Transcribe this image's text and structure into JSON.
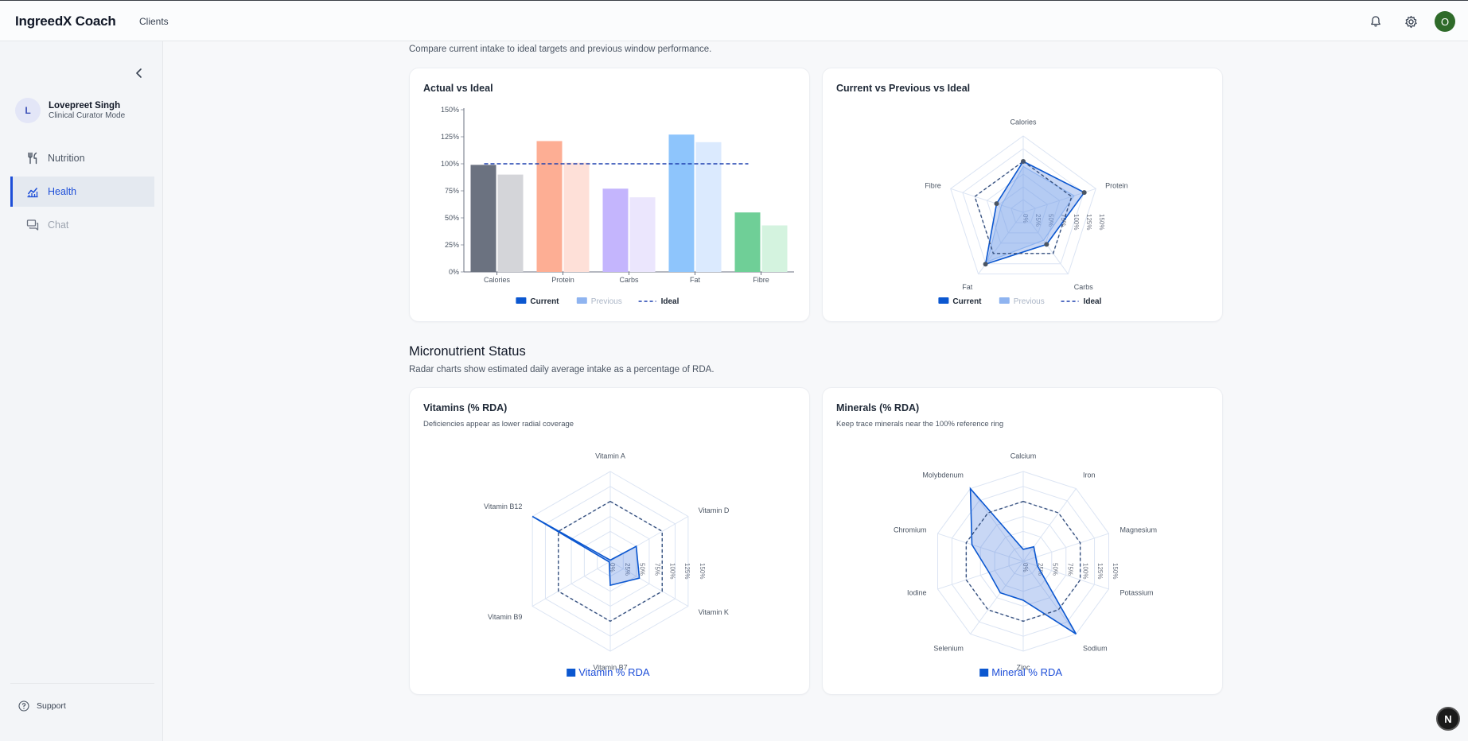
{
  "app": {
    "brand": "IngreedX Coach",
    "nav_link": "Clients",
    "user_initial": "O"
  },
  "topbar_icons": [
    "bell-icon",
    "gear-icon"
  ],
  "sidebar": {
    "user": {
      "initial": "L",
      "name": "Lovepreet Singh",
      "role": "Clinical Curator Mode"
    },
    "items": [
      {
        "label": "Nutrition",
        "icon": "fork-knife-icon",
        "active": false,
        "disabled": false
      },
      {
        "label": "Health",
        "icon": "chart-icon",
        "active": true,
        "disabled": false
      },
      {
        "label": "Chat",
        "icon": "chat-icon",
        "active": false,
        "disabled": true
      }
    ],
    "support": "Support"
  },
  "main": {
    "top_subtitle": "Compare current intake to ideal targets and previous window performance.",
    "micro_title": "Micronutrient Status",
    "micro_subtitle": "Radar charts show estimated daily average intake as a percentage of RDA."
  },
  "cards": {
    "actual_vs_ideal": {
      "title": "Actual vs Ideal"
    },
    "current_prev_ideal": {
      "title": "Current vs Previous vs Ideal"
    },
    "vitamins": {
      "title": "Vitamins (% RDA)",
      "subtitle": "Deficiencies appear as lower radial coverage"
    },
    "minerals": {
      "title": "Minerals (% RDA)",
      "subtitle": "Keep trace minerals near the 100% reference ring"
    }
  },
  "colors": {
    "accent": "#1d4ed8",
    "current": "#0b57d0",
    "previous": "#8fb4f0",
    "ideal": "#1e40af"
  },
  "chart_data": [
    {
      "type": "bar",
      "title": "Actual vs Ideal",
      "categories": [
        "Calories",
        "Protein",
        "Carbs",
        "Fat",
        "Fibre"
      ],
      "yticks": [
        "0%",
        "25%",
        "50%",
        "75%",
        "100%",
        "125%",
        "150%"
      ],
      "ylim": [
        0,
        150
      ],
      "series": [
        {
          "name": "Current",
          "values": [
            99,
            121,
            77,
            127,
            55
          ],
          "colors": [
            "#6b7280",
            "#fdae94",
            "#c4b5fd",
            "#8ec5fc",
            "#6fcf97"
          ]
        },
        {
          "name": "Previous",
          "values": [
            90,
            101,
            69,
            120,
            43
          ],
          "colors": [
            "#d4d5d9",
            "#fee0d8",
            "#ebe6fd",
            "#dbeafe",
            "#d4f3df"
          ]
        }
      ],
      "ideal": 100,
      "legend": [
        {
          "label": "Current",
          "kind": "current"
        },
        {
          "label": "Previous",
          "kind": "previous"
        },
        {
          "label": "Ideal",
          "kind": "ideal"
        }
      ]
    },
    {
      "type": "radar",
      "title": "Current vs Previous vs Ideal",
      "axes": [
        "Calories",
        "Protein",
        "Carbs",
        "Fat",
        "Fibre"
      ],
      "ring_labels": [
        "0%",
        "25%",
        "50%",
        "75%",
        "100%",
        "125%",
        "150%"
      ],
      "max": 150,
      "series": [
        {
          "name": "Current",
          "values": [
            100,
            126,
            78,
            126,
            55
          ]
        },
        {
          "name": "Previous",
          "values": [
            90,
            105,
            68,
            120,
            45
          ]
        },
        {
          "name": "Ideal",
          "values": [
            100,
            100,
            100,
            100,
            100
          ]
        }
      ],
      "legend": [
        {
          "label": "Current",
          "kind": "current"
        },
        {
          "label": "Previous",
          "kind": "previous"
        },
        {
          "label": "Ideal",
          "kind": "ideal"
        }
      ]
    },
    {
      "type": "radar",
      "title": "Vitamins (% RDA)",
      "axes": [
        "Vitamin A",
        "Vitamin D",
        "Vitamin K",
        "Vitamin B7",
        "Vitamin B9",
        "Vitamin B12"
      ],
      "ring_labels": [
        "0%",
        "25%",
        "50%",
        "75%",
        "100%",
        "125%",
        "150%"
      ],
      "max": 150,
      "series": [
        {
          "name": "Vitamin % RDA",
          "values": [
            2,
            50,
            56,
            40,
            2,
            150
          ]
        },
        {
          "name": "Ideal",
          "values": [
            100,
            100,
            100,
            100,
            100,
            100
          ]
        }
      ],
      "legend": [
        {
          "label": "Vitamin % RDA",
          "kind": "big"
        }
      ]
    },
    {
      "type": "radar",
      "title": "Minerals (% RDA)",
      "axes": [
        "Calcium",
        "Iron",
        "Magnesium",
        "Potassium",
        "Sodium",
        "Zinc",
        "Selenium",
        "Iodine",
        "Chromium",
        "Molybdenum"
      ],
      "ring_labels": [
        "0%",
        "25%",
        "50%",
        "75%",
        "100%",
        "125%",
        "150%"
      ],
      "max": 150,
      "series": [
        {
          "name": "Mineral % RDA",
          "values": [
            20,
            30,
            22,
            25,
            150,
            65,
            65,
            60,
            90,
            150
          ]
        },
        {
          "name": "Ideal",
          "values": [
            100,
            100,
            100,
            100,
            100,
            100,
            100,
            100,
            100,
            100
          ]
        }
      ],
      "legend": [
        {
          "label": "Mineral % RDA",
          "kind": "big"
        }
      ]
    }
  ]
}
